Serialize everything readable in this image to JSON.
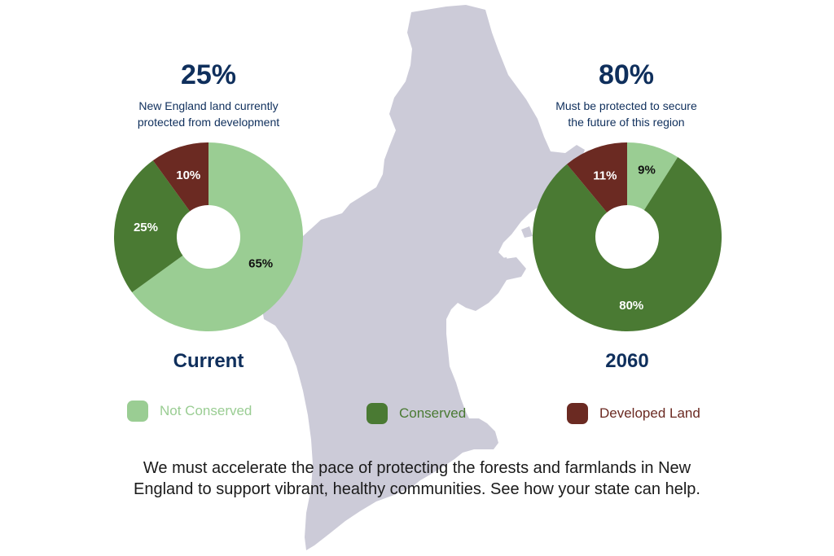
{
  "left": {
    "headline": "25%",
    "subtitle_line1": "New England land currently",
    "subtitle_line2": "protected from development",
    "caption": "Current"
  },
  "right": {
    "headline": "80%",
    "subtitle_line1": "Must be protected to secure",
    "subtitle_line2": "the future of this region",
    "caption": "2060"
  },
  "legend": [
    {
      "label": "Not Conserved",
      "color": "#9acd93"
    },
    {
      "label": "Conserved",
      "color": "#4a7a33"
    },
    {
      "label": "Developed Land",
      "color": "#6b2a22"
    }
  ],
  "footer": {
    "line1": "We must accelerate the pace of protecting the forests and farmlands in New",
    "line2": "England to support vibrant, healthy communities. See how your state can help."
  },
  "map_color": "#cccbd8",
  "chart_data": [
    {
      "type": "pie",
      "title": "Current",
      "donut": true,
      "categories": [
        "Not Conserved",
        "Conserved",
        "Developed Land"
      ],
      "values": [
        65,
        25,
        10
      ],
      "labels": [
        "65%",
        "25%",
        "10%"
      ],
      "colors": [
        "#9acd93",
        "#4a7a33",
        "#6b2a22"
      ]
    },
    {
      "type": "pie",
      "title": "2060",
      "donut": true,
      "categories": [
        "Not Conserved",
        "Conserved",
        "Developed Land"
      ],
      "values": [
        9,
        80,
        11
      ],
      "labels": [
        "9%",
        "80%",
        "11%"
      ],
      "colors": [
        "#9acd93",
        "#4a7a33",
        "#6b2a22"
      ]
    }
  ]
}
